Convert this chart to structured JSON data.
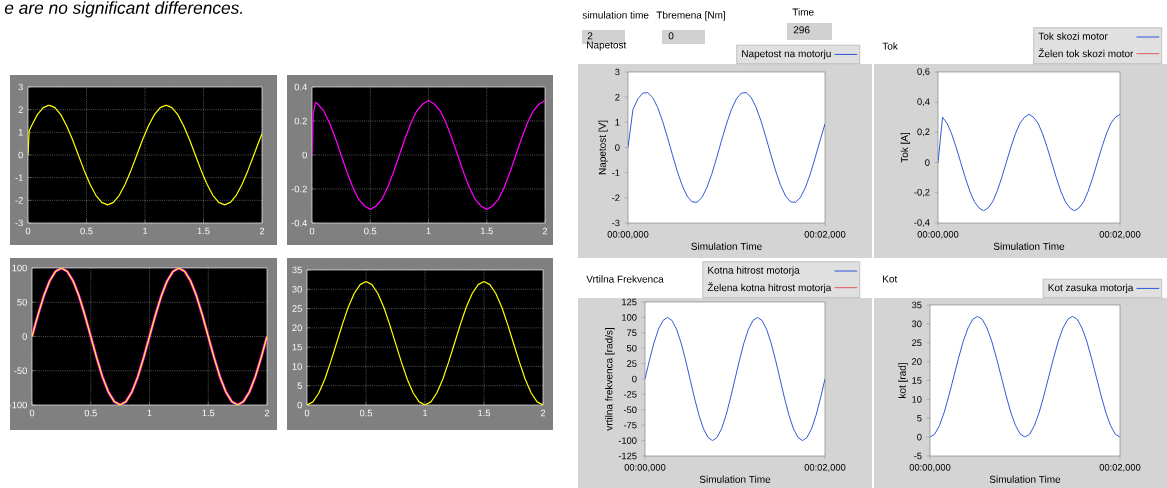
{
  "chart_data": [
    {
      "type": "other",
      "annotations": [
        "e are no significant differences."
      ]
    },
    {
      "type": "line",
      "x": [
        0,
        0.01,
        0.03,
        0.08,
        0.13,
        0.18,
        0.23,
        0.28,
        0.33,
        0.38,
        0.43,
        0.48,
        0.53,
        0.58,
        0.63,
        0.68,
        0.73,
        0.78,
        0.83,
        0.88,
        0.93,
        0.98,
        1.03,
        1.08,
        1.13,
        1.18,
        1.23,
        1.28,
        1.33,
        1.38,
        1.43,
        1.48,
        1.53,
        1.58,
        1.63,
        1.68,
        1.73,
        1.78,
        1.83,
        1.88,
        1.93,
        1.98,
        2
      ],
      "series": [
        {
          "color": "#ffff00",
          "values": [
            0,
            1.06,
            1.29,
            1.78,
            2.09,
            2.2,
            2.09,
            1.78,
            1.29,
            0.68,
            0,
            -0.68,
            -1.29,
            -1.78,
            -2.09,
            -2.2,
            -2.09,
            -1.78,
            -1.29,
            -0.68,
            0,
            0.68,
            1.29,
            1.78,
            2.09,
            2.2,
            2.09,
            1.78,
            1.29,
            0.68,
            0,
            -0.68,
            -1.29,
            -1.78,
            -2.09,
            -2.2,
            -2.09,
            -1.78,
            -1.29,
            -0.68,
            0,
            0.68,
            0.94
          ]
        }
      ],
      "xlim": [
        0,
        2
      ],
      "ylim": [
        -3,
        3
      ],
      "xticks": [
        0,
        0.5,
        1,
        1.5,
        2
      ],
      "yticks": [
        -3,
        -2,
        -1,
        0,
        1,
        2,
        3
      ],
      "grid": true
    },
    {
      "type": "line",
      "x": [
        0,
        0.01,
        0.03,
        0.05,
        0.1,
        0.15,
        0.2,
        0.25,
        0.3,
        0.35,
        0.4,
        0.45,
        0.5,
        0.55,
        0.6,
        0.65,
        0.7,
        0.75,
        0.8,
        0.85,
        0.9,
        0.95,
        1,
        1.05,
        1.1,
        1.15,
        1.2,
        1.25,
        1.3,
        1.35,
        1.4,
        1.45,
        1.5,
        1.55,
        1.6,
        1.65,
        1.7,
        1.75,
        1.8,
        1.85,
        1.9,
        1.95,
        2
      ],
      "series": [
        {
          "color": "#ff00ff",
          "values": [
            0,
            0.24,
            0.31,
            0.3,
            0.26,
            0.19,
            0.1,
            0,
            -0.1,
            -0.19,
            -0.26,
            -0.3,
            -0.32,
            -0.3,
            -0.26,
            -0.19,
            -0.1,
            0,
            0.1,
            0.19,
            0.26,
            0.3,
            0.32,
            0.3,
            0.26,
            0.19,
            0.1,
            0,
            -0.1,
            -0.19,
            -0.26,
            -0.3,
            -0.32,
            -0.3,
            -0.26,
            -0.19,
            -0.1,
            0,
            0.1,
            0.19,
            0.26,
            0.3,
            0.32
          ]
        }
      ],
      "xlim": [
        0,
        2
      ],
      "ylim": [
        -0.4,
        0.4
      ],
      "xticks": [
        0,
        0.5,
        1,
        1.5,
        2
      ],
      "yticks": [
        -0.4,
        -0.2,
        0,
        0.2,
        0.4
      ],
      "grid": true
    },
    {
      "type": "other",
      "annotations": [
        "simulation time",
        "2",
        "Tbremena [Nm]",
        "0",
        "Time",
        "296"
      ]
    },
    {
      "type": "line",
      "title": "Napetost",
      "xlabel": "Simulation Time",
      "ylabel": "Napetost [V]",
      "legend": "top right",
      "categories": [
        "00:00,000",
        null,
        null,
        null,
        null,
        null,
        null,
        null,
        null,
        null,
        null,
        null,
        null,
        null,
        null,
        null,
        null,
        null,
        null,
        null,
        null,
        null,
        null,
        null,
        null,
        null,
        null,
        null,
        null,
        null,
        null,
        null,
        null,
        null,
        null,
        null,
        null,
        null,
        null,
        null,
        "00:02,000"
      ],
      "series": [
        {
          "name": "Napetost na motorju",
          "color": "#1f4fd6",
          "values": [
            0,
            1.51,
            1.93,
            2.16,
            2.18,
            1.99,
            1.6,
            1.06,
            0.41,
            -0.28,
            -0.94,
            -1.51,
            -1.93,
            -2.16,
            -2.18,
            -1.99,
            -1.6,
            -1.06,
            -0.41,
            0.28,
            0.94,
            1.51,
            1.93,
            2.16,
            2.18,
            1.99,
            1.6,
            1.06,
            0.41,
            -0.28,
            -0.94,
            -1.51,
            -1.93,
            -2.16,
            -2.18,
            -1.99,
            -1.6,
            -1.06,
            -0.41,
            0.28,
            0.94
          ]
        }
      ],
      "ylim": [
        -3,
        3
      ],
      "yticks": [
        -3,
        -2,
        -1,
        0,
        1,
        2,
        3
      ]
    },
    {
      "type": "line",
      "title": "Tok",
      "xlabel": "Simulation Time",
      "ylabel": "Tok [A]",
      "legend": "top right",
      "categories": [
        "00:00,000",
        null,
        null,
        null,
        null,
        null,
        null,
        null,
        null,
        null,
        null,
        null,
        null,
        null,
        null,
        null,
        null,
        null,
        null,
        null,
        null,
        null,
        null,
        null,
        null,
        null,
        null,
        null,
        null,
        null,
        null,
        null,
        null,
        null,
        null,
        null,
        null,
        null,
        null,
        null,
        "00:02,000"
      ],
      "series": [
        {
          "name": "Tok skozi motor",
          "color": "#1f4fd6",
          "values": [
            0,
            0.3,
            0.26,
            0.19,
            0.1,
            0,
            -0.1,
            -0.19,
            -0.26,
            -0.3,
            -0.32,
            -0.3,
            -0.26,
            -0.19,
            -0.1,
            0,
            0.1,
            0.19,
            0.26,
            0.3,
            0.32,
            0.3,
            0.26,
            0.19,
            0.1,
            0,
            -0.1,
            -0.19,
            -0.26,
            -0.3,
            -0.32,
            -0.3,
            -0.26,
            -0.19,
            -0.1,
            0,
            0.1,
            0.19,
            0.26,
            0.3,
            0.32
          ]
        },
        {
          "name": "Želen tok skozi motor",
          "color": "#e05050",
          "values": [
            null,
            null,
            null,
            null,
            null,
            null,
            null,
            null,
            null,
            null,
            null,
            null,
            null,
            null,
            null,
            null,
            null,
            null,
            null,
            null,
            null,
            null,
            null,
            null,
            null,
            null,
            null,
            null,
            null,
            null,
            null,
            null,
            null,
            null,
            null,
            null,
            null,
            null,
            null,
            null,
            null
          ]
        }
      ],
      "ylim": [
        -0.4,
        0.6
      ],
      "yticks": [
        {
          "value": -0.4,
          "label": "-0,4"
        },
        {
          "value": -0.2,
          "label": "-0,2"
        },
        0,
        {
          "value": 0.2,
          "label": "0,2"
        },
        {
          "value": 0.4,
          "label": "0,4"
        },
        {
          "value": 0.6,
          "label": "0,6"
        }
      ]
    },
    {
      "type": "line",
      "x": [
        0,
        0.05,
        0.1,
        0.15,
        0.2,
        0.25,
        0.3,
        0.35,
        0.4,
        0.45,
        0.5,
        0.55,
        0.6,
        0.65,
        0.7,
        0.75,
        0.8,
        0.85,
        0.9,
        0.95,
        1,
        1.05,
        1.1,
        1.15,
        1.2,
        1.25,
        1.3,
        1.35,
        1.4,
        1.45,
        1.5,
        1.55,
        1.6,
        1.65,
        1.7,
        1.75,
        1.8,
        1.85,
        1.9,
        1.95,
        2
      ],
      "series": [
        {
          "color": "#ff00ff",
          "values": [
            0,
            31,
            59,
            81,
            95,
            100,
            95,
            81,
            59,
            31,
            0,
            -31,
            -59,
            -81,
            -95,
            -100,
            -95,
            -81,
            -59,
            -31,
            0,
            31,
            59,
            81,
            95,
            100,
            95,
            81,
            59,
            31,
            0,
            -31,
            -59,
            -81,
            -95,
            -100,
            -95,
            -81,
            -59,
            -31,
            0
          ]
        },
        {
          "color": "#ffff00",
          "values": [
            0,
            31,
            59,
            81,
            95,
            100,
            95,
            81,
            59,
            31,
            0,
            -31,
            -59,
            -81,
            -95,
            -100,
            -95,
            -81,
            -59,
            -31,
            0,
            31,
            59,
            81,
            95,
            100,
            95,
            81,
            59,
            31,
            0,
            -31,
            -59,
            -81,
            -95,
            -100,
            -95,
            -81,
            -59,
            -31,
            0
          ]
        }
      ],
      "xlim": [
        0,
        2
      ],
      "ylim": [
        -100,
        100
      ],
      "xticks": [
        0,
        0.5,
        1,
        1.5,
        2
      ],
      "yticks": [
        -100,
        -50,
        0,
        50,
        100
      ],
      "grid": true
    },
    {
      "type": "line",
      "x": [
        0,
        0.05,
        0.1,
        0.15,
        0.2,
        0.25,
        0.3,
        0.35,
        0.4,
        0.45,
        0.5,
        0.55,
        0.6,
        0.65,
        0.7,
        0.75,
        0.8,
        0.85,
        0.9,
        0.95,
        1,
        1.05,
        1.1,
        1.15,
        1.2,
        1.25,
        1.3,
        1.35,
        1.4,
        1.45,
        1.5,
        1.55,
        1.6,
        1.65,
        1.7,
        1.75,
        1.8,
        1.85,
        1.9,
        1.95,
        2
      ],
      "series": [
        {
          "color": "#ffff00",
          "values": [
            0,
            0.8,
            3.1,
            6.6,
            11.1,
            16,
            20.9,
            25.4,
            28.9,
            31.2,
            32,
            31.2,
            28.9,
            25.4,
            20.9,
            16,
            11.1,
            6.6,
            3.1,
            0.8,
            0,
            0.8,
            3.1,
            6.6,
            11.1,
            16,
            20.9,
            25.4,
            28.9,
            31.2,
            32,
            31.2,
            28.9,
            25.4,
            20.9,
            16,
            11.1,
            6.6,
            3.1,
            0.8,
            0
          ]
        }
      ],
      "xlim": [
        0,
        2
      ],
      "ylim": [
        0,
        35
      ],
      "xticks": [
        0,
        0.5,
        1,
        1.5,
        2
      ],
      "yticks": [
        0,
        5,
        10,
        15,
        20,
        25,
        30,
        35
      ],
      "grid": true
    },
    {
      "type": "line",
      "title": "Vrtilna Frekvenca",
      "xlabel": "Simulation Time",
      "ylabel": "vrtilna frekvenca [rad/s]",
      "legend": "top right",
      "categories": [
        "00:00,000",
        null,
        null,
        null,
        null,
        null,
        null,
        null,
        null,
        null,
        null,
        null,
        null,
        null,
        null,
        null,
        null,
        null,
        null,
        null,
        null,
        null,
        null,
        null,
        null,
        null,
        null,
        null,
        null,
        null,
        null,
        null,
        null,
        null,
        null,
        null,
        null,
        null,
        null,
        null,
        "00:02,000"
      ],
      "series": [
        {
          "name": "Kotna hitrost motorja",
          "color": "#1f4fd6",
          "values": [
            0,
            31,
            59,
            81,
            95,
            100,
            95,
            81,
            59,
            31,
            0,
            -31,
            -59,
            -81,
            -95,
            -100,
            -95,
            -81,
            -59,
            -31,
            0,
            31,
            59,
            81,
            95,
            100,
            95,
            81,
            59,
            31,
            0,
            -31,
            -59,
            -81,
            -95,
            -100,
            -95,
            -81,
            -59,
            -31,
            0
          ]
        },
        {
          "name": "Želena kotna hitrost motorja",
          "color": "#e05050",
          "values": [
            null,
            null,
            null,
            null,
            null,
            null,
            null,
            null,
            null,
            null,
            null,
            null,
            null,
            null,
            null,
            null,
            null,
            null,
            null,
            null,
            null,
            null,
            null,
            null,
            null,
            null,
            null,
            null,
            null,
            null,
            null,
            null,
            null,
            null,
            null,
            null,
            null,
            null,
            null,
            null,
            null
          ]
        }
      ],
      "ylim": [
        -125,
        125
      ],
      "yticks": [
        -125,
        -100,
        -75,
        -50,
        -25,
        0,
        25,
        50,
        75,
        100,
        125
      ]
    },
    {
      "type": "line",
      "title": "Kot",
      "xlabel": "Simulation Time",
      "ylabel": "kot [rad]",
      "legend": "top right",
      "categories": [
        "00:00,000",
        null,
        null,
        null,
        null,
        null,
        null,
        null,
        null,
        null,
        null,
        null,
        null,
        null,
        null,
        null,
        null,
        null,
        null,
        null,
        null,
        null,
        null,
        null,
        null,
        null,
        null,
        null,
        null,
        null,
        null,
        null,
        null,
        null,
        null,
        null,
        null,
        null,
        null,
        null,
        "00:02,000"
      ],
      "series": [
        {
          "name": "Kot zasuka motorja",
          "color": "#1f4fd6",
          "values": [
            0,
            0.8,
            3.1,
            6.6,
            11.1,
            16,
            20.9,
            25.4,
            28.9,
            31.2,
            32,
            31.2,
            28.9,
            25.4,
            20.9,
            16,
            11.1,
            6.6,
            3.1,
            0.8,
            0,
            0.8,
            3.1,
            6.6,
            11.1,
            16,
            20.9,
            25.4,
            28.9,
            31.2,
            32,
            31.2,
            28.9,
            25.4,
            20.9,
            16,
            11.1,
            6.6,
            3.1,
            0.8,
            0
          ]
        }
      ],
      "ylim": [
        -5,
        35
      ],
      "yticks": [
        -5,
        0,
        5,
        10,
        15,
        20,
        25,
        30,
        35
      ]
    }
  ]
}
